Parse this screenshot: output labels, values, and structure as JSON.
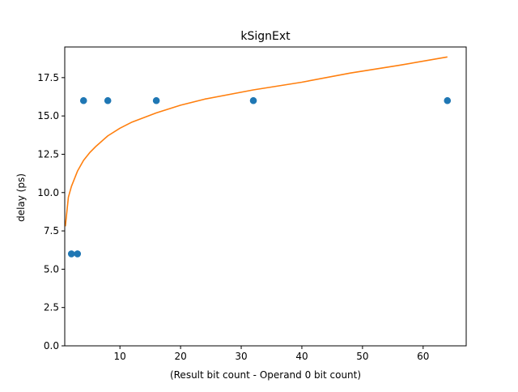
{
  "chart_data": {
    "type": "scatter",
    "title": "kSignExt",
    "xlabel": "(Result bit count - Operand 0 bit count)",
    "ylabel": "delay (ps)",
    "xlim": [
      0.9,
      67.1
    ],
    "ylim": [
      0.0,
      19.5
    ],
    "xticks": [
      10,
      20,
      30,
      40,
      50,
      60
    ],
    "yticks": [
      0.0,
      2.5,
      5.0,
      7.5,
      10.0,
      12.5,
      15.0,
      17.5
    ],
    "xtick_labels": [
      "10",
      "20",
      "30",
      "40",
      "50",
      "60"
    ],
    "ytick_labels": [
      "0.0",
      "2.5",
      "5.0",
      "7.5",
      "10.0",
      "12.5",
      "15.0",
      "17.5"
    ],
    "grid": false,
    "series": [
      {
        "kind": "scatter",
        "color": "#1f77b4",
        "x": [
          2,
          3,
          4,
          8,
          16,
          32,
          64
        ],
        "y": [
          6,
          6,
          16,
          16,
          16,
          16,
          16
        ]
      },
      {
        "kind": "line",
        "color": "#ff7f0e",
        "x": [
          1,
          1.5,
          2,
          3,
          4,
          5,
          6,
          8,
          10,
          12,
          16,
          20,
          24,
          32,
          40,
          48,
          56,
          64
        ],
        "y": [
          7.8,
          9.7,
          10.4,
          11.4,
          12.1,
          12.6,
          13.0,
          13.7,
          14.2,
          14.6,
          15.2,
          15.7,
          16.1,
          16.7,
          17.2,
          17.8,
          18.3,
          18.85
        ]
      }
    ]
  }
}
